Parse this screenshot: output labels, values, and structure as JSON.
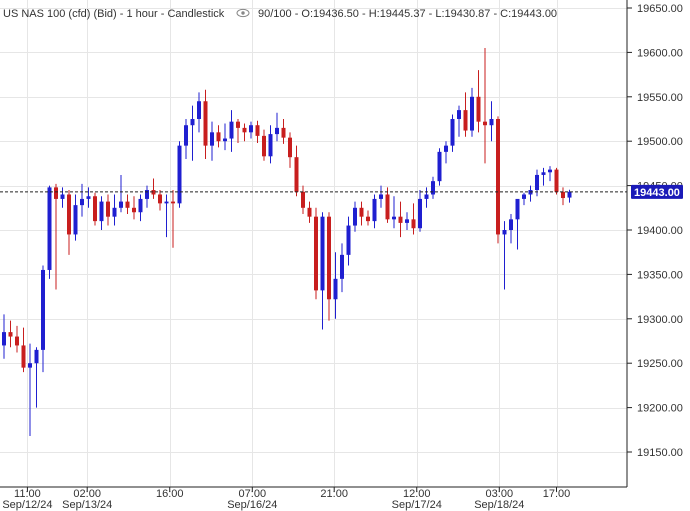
{
  "header": {
    "title": "US NAS 100 (cfd) (Bid) - 1 hour - Candlestick",
    "eye_icon": "eye-icon",
    "ohlc": "90/100 - O:19436.50 - H:19445.37 - L:19430.87 - C:19443.00"
  },
  "colors": {
    "up": "#1f1fd0",
    "down": "#c81e1e",
    "grid": "#e6e6e6",
    "axis": "#222222",
    "price_box": "#1a1ab8"
  },
  "current_price_label": "19443.00",
  "chart_data": {
    "type": "candlestick",
    "title": "US NAS 100 (cfd) (Bid) - 1 hour - Candlestick",
    "ylim": [
      19100,
      19675
    ],
    "yticks": [
      19150,
      19200,
      19250,
      19300,
      19350,
      19400,
      19450,
      19500,
      19550,
      19600,
      19650
    ],
    "ytick_labels": [
      "19150.00",
      "19200.00",
      "19250.00",
      "19300.00",
      "19350.00",
      "19400.00",
      "19450.00",
      "19500.00",
      "19550.00",
      "19600.00",
      "19650.00"
    ],
    "current_price": 19443.0,
    "xticks": [
      {
        "index": 3.6,
        "label": "11:00",
        "date": "Sep/12/24"
      },
      {
        "index": 12.8,
        "label": "02:00",
        "date": "Sep/13/24"
      },
      {
        "index": 25.5,
        "label": "16:00"
      },
      {
        "index": 38.2,
        "label": "07:00",
        "date": "Sep/16/24"
      },
      {
        "index": 50.8,
        "label": "21:00"
      },
      {
        "index": 63.5,
        "label": "12:00",
        "date": "Sep/17/24"
      },
      {
        "index": 76.2,
        "label": "03:00",
        "date": "Sep/18/24"
      },
      {
        "index": 85.0,
        "label": "17:00"
      }
    ],
    "candles": [
      {
        "o": 19270,
        "h": 19305,
        "l": 19255,
        "c": 19285
      },
      {
        "o": 19285,
        "h": 19298,
        "l": 19268,
        "c": 19280
      },
      {
        "o": 19280,
        "h": 19292,
        "l": 19262,
        "c": 19270
      },
      {
        "o": 19270,
        "h": 19290,
        "l": 19240,
        "c": 19245
      },
      {
        "o": 19245,
        "h": 19272,
        "l": 19168,
        "c": 19250
      },
      {
        "o": 19250,
        "h": 19268,
        "l": 19200,
        "c": 19265
      },
      {
        "o": 19265,
        "h": 19360,
        "l": 19240,
        "c": 19355
      },
      {
        "o": 19355,
        "h": 19450,
        "l": 19345,
        "c": 19448
      },
      {
        "o": 19448,
        "h": 19452,
        "l": 19333,
        "c": 19435
      },
      {
        "o": 19435,
        "h": 19448,
        "l": 19425,
        "c": 19440
      },
      {
        "o": 19440,
        "h": 19445,
        "l": 19372,
        "c": 19395
      },
      {
        "o": 19395,
        "h": 19440,
        "l": 19388,
        "c": 19428
      },
      {
        "o": 19428,
        "h": 19452,
        "l": 19415,
        "c": 19435
      },
      {
        "o": 19435,
        "h": 19448,
        "l": 19425,
        "c": 19438
      },
      {
        "o": 19438,
        "h": 19442,
        "l": 19405,
        "c": 19410
      },
      {
        "o": 19410,
        "h": 19438,
        "l": 19400,
        "c": 19432
      },
      {
        "o": 19432,
        "h": 19440,
        "l": 19405,
        "c": 19415
      },
      {
        "o": 19415,
        "h": 19440,
        "l": 19405,
        "c": 19425
      },
      {
        "o": 19425,
        "h": 19462,
        "l": 19420,
        "c": 19432
      },
      {
        "o": 19432,
        "h": 19440,
        "l": 19418,
        "c": 19425
      },
      {
        "o": 19425,
        "h": 19438,
        "l": 19412,
        "c": 19420
      },
      {
        "o": 19420,
        "h": 19440,
        "l": 19410,
        "c": 19435
      },
      {
        "o": 19435,
        "h": 19450,
        "l": 19425,
        "c": 19445
      },
      {
        "o": 19445,
        "h": 19458,
        "l": 19435,
        "c": 19440
      },
      {
        "o": 19440,
        "h": 19445,
        "l": 19422,
        "c": 19430
      },
      {
        "o": 19430,
        "h": 19440,
        "l": 19392,
        "c": 19432
      },
      {
        "o": 19432,
        "h": 19445,
        "l": 19380,
        "c": 19430
      },
      {
        "o": 19430,
        "h": 19500,
        "l": 19425,
        "c": 19495
      },
      {
        "o": 19495,
        "h": 19525,
        "l": 19480,
        "c": 19518
      },
      {
        "o": 19518,
        "h": 19540,
        "l": 19478,
        "c": 19525
      },
      {
        "o": 19525,
        "h": 19555,
        "l": 19510,
        "c": 19545
      },
      {
        "o": 19545,
        "h": 19558,
        "l": 19480,
        "c": 19495
      },
      {
        "o": 19495,
        "h": 19522,
        "l": 19478,
        "c": 19510
      },
      {
        "o": 19510,
        "h": 19518,
        "l": 19493,
        "c": 19500
      },
      {
        "o": 19500,
        "h": 19520,
        "l": 19490,
        "c": 19503
      },
      {
        "o": 19503,
        "h": 19535,
        "l": 19488,
        "c": 19522
      },
      {
        "o": 19522,
        "h": 19525,
        "l": 19498,
        "c": 19515
      },
      {
        "o": 19515,
        "h": 19520,
        "l": 19500,
        "c": 19510
      },
      {
        "o": 19510,
        "h": 19522,
        "l": 19503,
        "c": 19518
      },
      {
        "o": 19518,
        "h": 19523,
        "l": 19498,
        "c": 19506
      },
      {
        "o": 19506,
        "h": 19513,
        "l": 19478,
        "c": 19483
      },
      {
        "o": 19483,
        "h": 19518,
        "l": 19475,
        "c": 19508
      },
      {
        "o": 19508,
        "h": 19532,
        "l": 19500,
        "c": 19515
      },
      {
        "o": 19515,
        "h": 19525,
        "l": 19497,
        "c": 19504
      },
      {
        "o": 19504,
        "h": 19510,
        "l": 19470,
        "c": 19482
      },
      {
        "o": 19482,
        "h": 19495,
        "l": 19438,
        "c": 19443
      },
      {
        "o": 19443,
        "h": 19450,
        "l": 19418,
        "c": 19425
      },
      {
        "o": 19425,
        "h": 19432,
        "l": 19408,
        "c": 19415
      },
      {
        "o": 19415,
        "h": 19425,
        "l": 19322,
        "c": 19332
      },
      {
        "o": 19332,
        "h": 19420,
        "l": 19288,
        "c": 19415
      },
      {
        "o": 19415,
        "h": 19420,
        "l": 19298,
        "c": 19322
      },
      {
        "o": 19322,
        "h": 19375,
        "l": 19300,
        "c": 19345
      },
      {
        "o": 19345,
        "h": 19385,
        "l": 19330,
        "c": 19372
      },
      {
        "o": 19372,
        "h": 19415,
        "l": 19360,
        "c": 19405
      },
      {
        "o": 19405,
        "h": 19432,
        "l": 19398,
        "c": 19425
      },
      {
        "o": 19425,
        "h": 19432,
        "l": 19405,
        "c": 19415
      },
      {
        "o": 19415,
        "h": 19422,
        "l": 19405,
        "c": 19410
      },
      {
        "o": 19410,
        "h": 19440,
        "l": 19402,
        "c": 19435
      },
      {
        "o": 19435,
        "h": 19450,
        "l": 19425,
        "c": 19440
      },
      {
        "o": 19440,
        "h": 19448,
        "l": 19408,
        "c": 19412
      },
      {
        "o": 19412,
        "h": 19438,
        "l": 19402,
        "c": 19415
      },
      {
        "o": 19415,
        "h": 19432,
        "l": 19392,
        "c": 19408
      },
      {
        "o": 19408,
        "h": 19420,
        "l": 19400,
        "c": 19412
      },
      {
        "o": 19412,
        "h": 19430,
        "l": 19395,
        "c": 19402
      },
      {
        "o": 19402,
        "h": 19445,
        "l": 19398,
        "c": 19435
      },
      {
        "o": 19435,
        "h": 19448,
        "l": 19425,
        "c": 19440
      },
      {
        "o": 19440,
        "h": 19460,
        "l": 19435,
        "c": 19455
      },
      {
        "o": 19455,
        "h": 19492,
        "l": 19450,
        "c": 19488
      },
      {
        "o": 19488,
        "h": 19500,
        "l": 19475,
        "c": 19495
      },
      {
        "o": 19495,
        "h": 19530,
        "l": 19488,
        "c": 19525
      },
      {
        "o": 19525,
        "h": 19540,
        "l": 19505,
        "c": 19535
      },
      {
        "o": 19535,
        "h": 19555,
        "l": 19505,
        "c": 19512
      },
      {
        "o": 19512,
        "h": 19560,
        "l": 19505,
        "c": 19550
      },
      {
        "o": 19550,
        "h": 19580,
        "l": 19510,
        "c": 19522
      },
      {
        "o": 19522,
        "h": 19605,
        "l": 19475,
        "c": 19518
      },
      {
        "o": 19518,
        "h": 19545,
        "l": 19500,
        "c": 19525
      },
      {
        "o": 19525,
        "h": 19528,
        "l": 19385,
        "c": 19395
      },
      {
        "o": 19395,
        "h": 19410,
        "l": 19333,
        "c": 19400
      },
      {
        "o": 19400,
        "h": 19418,
        "l": 19385,
        "c": 19412
      },
      {
        "o": 19412,
        "h": 19430,
        "l": 19378,
        "c": 19435
      },
      {
        "o": 19435,
        "h": 19442,
        "l": 19428,
        "c": 19440
      },
      {
        "o": 19440,
        "h": 19450,
        "l": 19432,
        "c": 19445
      },
      {
        "o": 19445,
        "h": 19468,
        "l": 19438,
        "c": 19462
      },
      {
        "o": 19462,
        "h": 19470,
        "l": 19450,
        "c": 19465
      },
      {
        "o": 19465,
        "h": 19472,
        "l": 19455,
        "c": 19468
      },
      {
        "o": 19468,
        "h": 19470,
        "l": 19440,
        "c": 19443
      },
      {
        "o": 19443,
        "h": 19448,
        "l": 19428,
        "c": 19436
      },
      {
        "o": 19436.5,
        "h": 19445.37,
        "l": 19430.87,
        "c": 19443
      }
    ]
  }
}
